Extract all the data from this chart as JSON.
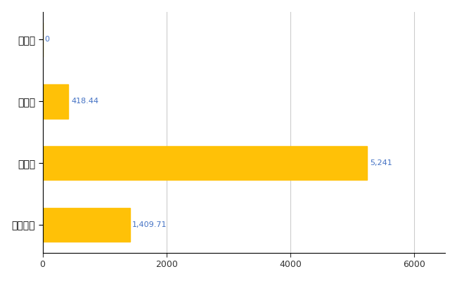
{
  "categories": [
    "全国平均",
    "県最大",
    "県平均",
    "鮫川村"
  ],
  "values": [
    1409.71,
    5241,
    418.44,
    0
  ],
  "bar_color": "#FFC107",
  "value_labels": [
    "1,409.71",
    "5,241",
    "418.44",
    "0"
  ],
  "value_color": "#4472C4",
  "xlim": [
    0,
    6500
  ],
  "xticks": [
    0,
    2000,
    4000,
    6000
  ],
  "xtick_labels": [
    "0",
    "2000",
    "4000",
    "6000"
  ],
  "background_color": "#FFFFFF",
  "grid_color": "#CCCCCC",
  "bar_height": 0.55
}
